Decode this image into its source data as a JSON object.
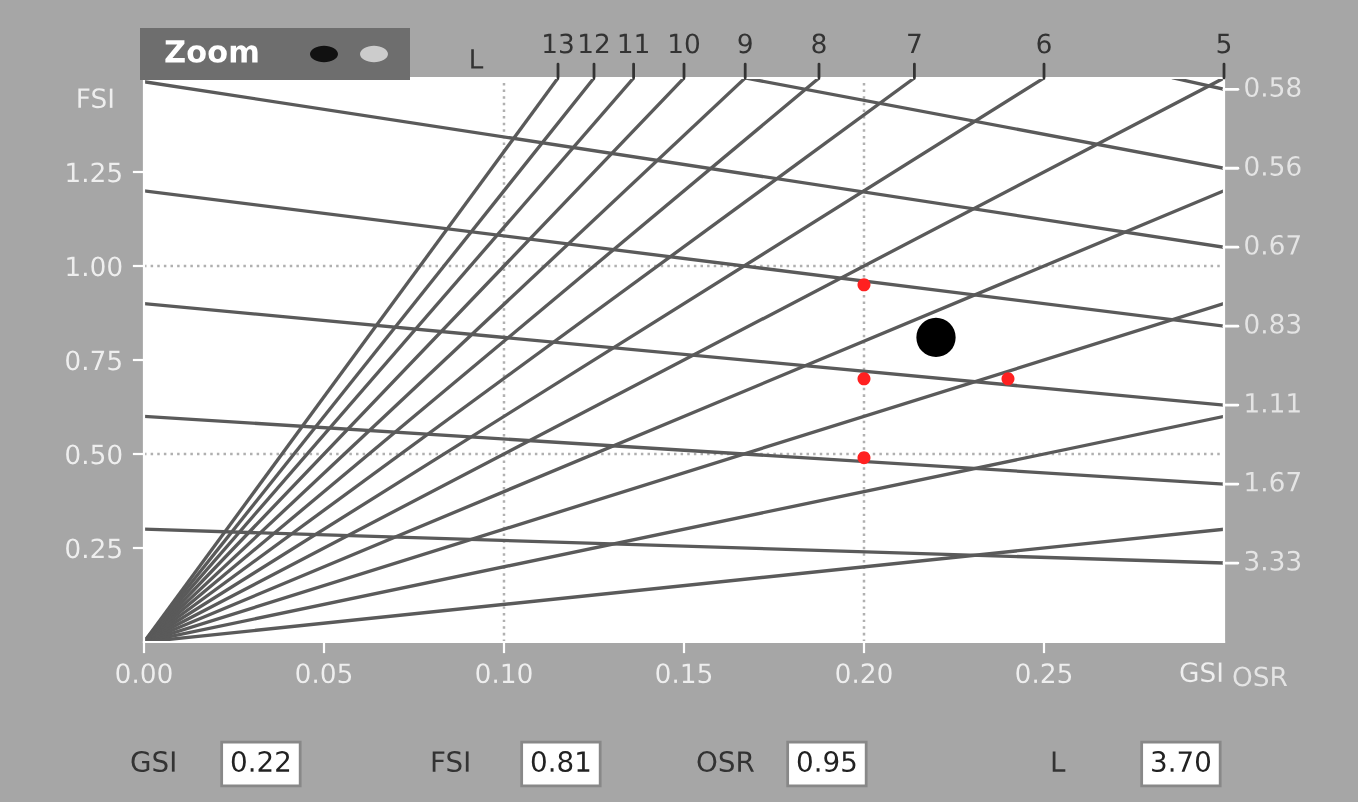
{
  "chart_data": {
    "type": "line",
    "xlabel": "GSI",
    "ylabel": "FSI",
    "xlim": [
      0,
      0.3
    ],
    "ylim": [
      0,
      1.5
    ],
    "xticks": [
      {
        "value": 0,
        "label": "0.00"
      },
      {
        "value": 0.05,
        "label": "0.05"
      },
      {
        "value": 0.1,
        "label": "0.10"
      },
      {
        "value": 0.15,
        "label": "0.15"
      },
      {
        "value": 0.2,
        "label": "0.20"
      },
      {
        "value": 0.25,
        "label": "0.25"
      }
    ],
    "yticks": [
      {
        "value": 0.25,
        "label": "0.25"
      },
      {
        "value": 0.5,
        "label": "0.50"
      },
      {
        "value": 0.75,
        "label": "0.75"
      },
      {
        "value": 1.0,
        "label": "1.00"
      },
      {
        "value": 1.25,
        "label": "1.25"
      }
    ],
    "grid": false,
    "ref_lines": [
      {
        "axis": "x",
        "value": 0.1,
        "color": "#b0b0b0",
        "line_style": "dotted"
      },
      {
        "axis": "x",
        "value": 0.2,
        "color": "#b0b0b0",
        "line_style": "dotted"
      },
      {
        "axis": "y",
        "value": 0.5,
        "color": "#b0b0b0",
        "line_style": "dotted"
      },
      {
        "axis": "y",
        "value": 1.0,
        "color": "#b0b0b0",
        "line_style": "dotted"
      }
    ],
    "series": [
      {
        "color": "#5a5a5a",
        "x": [
          0,
          0.115
        ],
        "values": [
          0,
          1.5
        ]
      },
      {
        "color": "#5a5a5a",
        "x": [
          0,
          0.125
        ],
        "values": [
          0,
          1.5
        ]
      },
      {
        "color": "#5a5a5a",
        "x": [
          0,
          0.136
        ],
        "values": [
          0,
          1.5
        ]
      },
      {
        "color": "#5a5a5a",
        "x": [
          0,
          0.15
        ],
        "values": [
          0,
          1.5
        ]
      },
      {
        "color": "#5a5a5a",
        "x": [
          0,
          0.167
        ],
        "values": [
          0,
          1.5
        ]
      },
      {
        "color": "#5a5a5a",
        "x": [
          0,
          0.1875
        ],
        "values": [
          0,
          1.5
        ]
      },
      {
        "color": "#5a5a5a",
        "x": [
          0,
          0.214
        ],
        "values": [
          0,
          1.5
        ]
      },
      {
        "color": "#5a5a5a",
        "x": [
          0,
          0.25
        ],
        "values": [
          0,
          1.5
        ]
      },
      {
        "color": "#5a5a5a",
        "x": [
          0,
          0.3
        ],
        "values": [
          0,
          1.5
        ]
      },
      {
        "color": "#5a5a5a",
        "x": [
          0,
          0.3
        ],
        "values": [
          0,
          1.2
        ]
      },
      {
        "color": "#5a5a5a",
        "x": [
          0,
          0.3
        ],
        "values": [
          0,
          0.9
        ]
      },
      {
        "color": "#5a5a5a",
        "x": [
          0,
          0.3
        ],
        "values": [
          0,
          0.6
        ]
      },
      {
        "color": "#5a5a5a",
        "x": [
          0,
          0.3
        ],
        "values": [
          0,
          0.3
        ]
      },
      {
        "color": "#5a5a5a",
        "x": [
          0.286,
          0.3
        ],
        "values": [
          1.5,
          1.47
        ]
      },
      {
        "color": "#5a5a5a",
        "x": [
          0.167,
          0.3
        ],
        "values": [
          1.5,
          1.26
        ]
      },
      {
        "color": "#5a5a5a",
        "x": [
          0,
          0.3
        ],
        "values": [
          1.49,
          1.05
        ]
      },
      {
        "color": "#5a5a5a",
        "x": [
          0,
          0.3
        ],
        "values": [
          1.2,
          0.84
        ]
      },
      {
        "color": "#5a5a5a",
        "x": [
          0,
          0.3
        ],
        "values": [
          0.9,
          0.63
        ]
      },
      {
        "color": "#5a5a5a",
        "x": [
          0,
          0.3
        ],
        "values": [
          0.6,
          0.42
        ]
      },
      {
        "color": "#5a5a5a",
        "x": [
          0,
          0.3
        ],
        "values": [
          0.3,
          0.21
        ]
      },
      {
        "type": "scatter",
        "color": "#ff2020",
        "marker": "circle",
        "x": [
          0.2,
          0.2,
          0.24,
          0.2
        ],
        "values": [
          0.95,
          0.7,
          0.7,
          0.49
        ]
      },
      {
        "type": "bubble",
        "color": "#000000",
        "x": [
          0.22
        ],
        "values": [
          0.81
        ],
        "sizes": [
          1
        ]
      }
    ],
    "annotations": [
      "Zoom",
      "L",
      "OSR",
      {
        "text": "13",
        "x": 0.115,
        "y": 1.5
      },
      {
        "text": "12",
        "x": 0.125,
        "y": 1.5
      },
      {
        "text": "11",
        "x": 0.136,
        "y": 1.5
      },
      {
        "text": "10",
        "x": 0.15,
        "y": 1.5
      },
      {
        "text": "9",
        "x": 0.167,
        "y": 1.5
      },
      {
        "text": "8",
        "x": 0.1875,
        "y": 1.5
      },
      {
        "text": "7",
        "x": 0.214,
        "y": 1.5
      },
      {
        "text": "6",
        "x": 0.25,
        "y": 1.5
      },
      {
        "text": "5",
        "x": 0.3,
        "y": 1.5
      },
      {
        "text": "0.58",
        "x": 0.3,
        "y": 1.47
      },
      {
        "text": "0.56",
        "x": 0.3,
        "y": 1.26
      },
      {
        "text": "0.67",
        "x": 0.3,
        "y": 1.05
      },
      {
        "text": "0.83",
        "x": 0.3,
        "y": 0.84
      },
      {
        "text": "1.11",
        "x": 0.3,
        "y": 0.63
      },
      {
        "text": "1.67",
        "x": 0.3,
        "y": 0.42
      },
      {
        "text": "3.33",
        "x": 0.3,
        "y": 0.21
      },
      "GSI",
      "0.22",
      "FSI",
      "0.81",
      "OSR",
      "0.95",
      "L",
      "3.70"
    ]
  }
}
